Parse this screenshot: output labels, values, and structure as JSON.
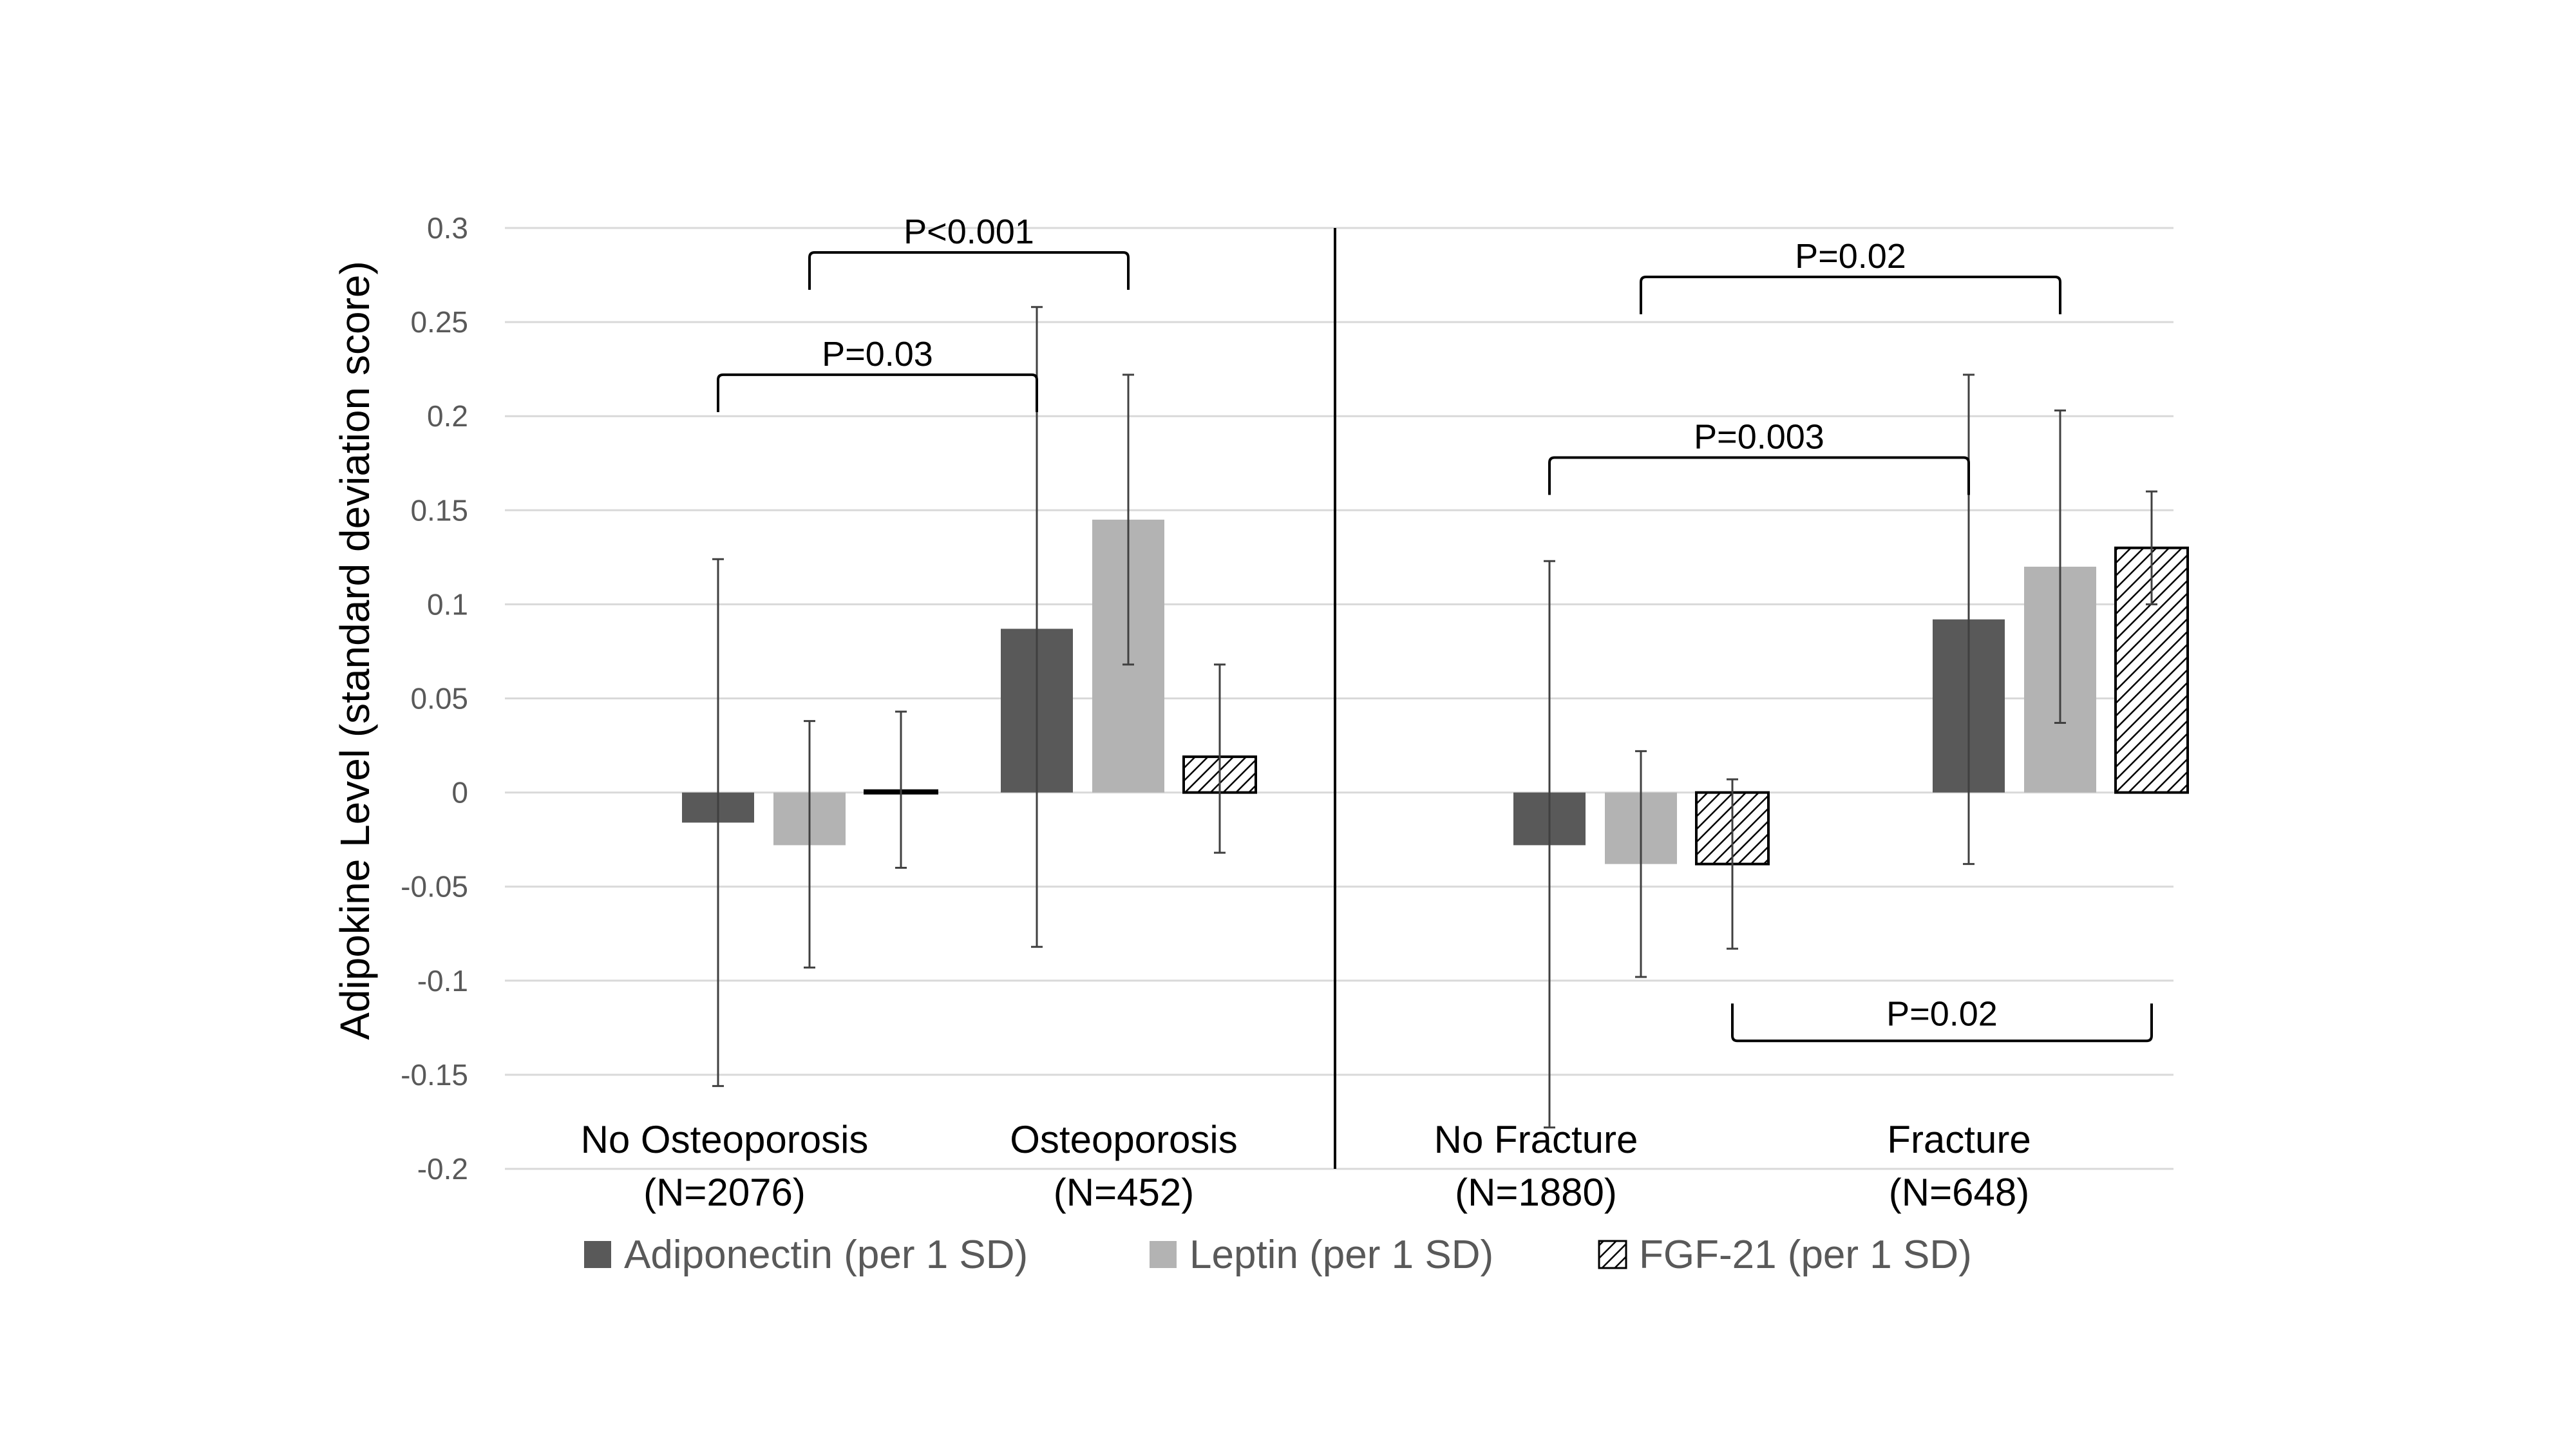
{
  "chart_data": {
    "type": "bar",
    "ylabel": "Adipokine Level (standard deviation score)",
    "ylim": [
      -0.2,
      0.3
    ],
    "yticks": [
      0.3,
      0.25,
      0.2,
      0.15,
      0.1,
      0.05,
      0,
      -0.05,
      -0.1,
      -0.15,
      -0.2
    ],
    "ytick_labels": [
      "0.3",
      "0.25",
      "0.2",
      "0.15",
      "0.1",
      "0.05",
      "0",
      "-0.05",
      "-0.1",
      "-0.15",
      "-0.2"
    ],
    "grid": true,
    "legend_position": "bottom",
    "categories": [
      {
        "line1": "No Osteoporosis",
        "line2": "(N=2076)"
      },
      {
        "line1": "Osteoporosis",
        "line2": "(N=452)"
      },
      {
        "line1": "No Fracture",
        "line2": "(N=1880)"
      },
      {
        "line1": "Fracture",
        "line2": "(N=648)"
      }
    ],
    "series": [
      {
        "name": "Adiponectin (per 1 SD)",
        "color": "#595959",
        "pattern": "solid",
        "values": [
          -0.016,
          0.087,
          -0.028,
          0.092
        ],
        "err_low": [
          -0.156,
          -0.082,
          -0.178,
          -0.038
        ],
        "err_high": [
          0.124,
          0.258,
          0.123,
          0.222
        ]
      },
      {
        "name": "Leptin (per 1 SD)",
        "color": "#b3b3b3",
        "pattern": "solid",
        "values": [
          -0.028,
          0.145,
          -0.038,
          0.12
        ],
        "err_low": [
          -0.093,
          0.068,
          -0.098,
          0.037
        ],
        "err_high": [
          0.038,
          0.222,
          0.022,
          0.203
        ]
      },
      {
        "name": "FGF-21 (per 1 SD)",
        "color": "#000000",
        "pattern": "hatch",
        "values": [
          0.001,
          0.019,
          -0.038,
          0.13
        ],
        "err_low": [
          -0.04,
          -0.032,
          -0.083,
          0.1
        ],
        "err_high": [
          0.043,
          0.068,
          0.007,
          0.16
        ]
      }
    ],
    "annotations": [
      {
        "text": "P<0.001",
        "series": 1,
        "from": 0,
        "to": 1,
        "y": 0.287,
        "dir": "down"
      },
      {
        "text": "P=0.03",
        "series": 0,
        "from": 0,
        "to": 1,
        "y": 0.222,
        "dir": "down"
      },
      {
        "text": "P=0.02",
        "series": 1,
        "from": 2,
        "to": 3,
        "y": 0.274,
        "dir": "down"
      },
      {
        "text": "P=0.003",
        "series": 0,
        "from": 2,
        "to": 3,
        "y": 0.178,
        "dir": "down"
      },
      {
        "text": "P=0.02",
        "series": 2,
        "from": 2,
        "to": 3,
        "y": -0.132,
        "dir": "up"
      }
    ],
    "colors": {
      "grid": "#d9d9d9",
      "tick_text": "#595959",
      "legend_text": "#595959",
      "divider": "#000000",
      "errorbar": "#404040"
    }
  }
}
